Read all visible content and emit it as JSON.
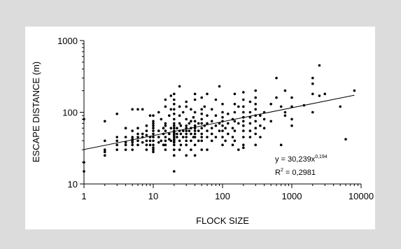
{
  "chart_data": {
    "type": "scatter",
    "xlabel": "FLOCK SIZE",
    "ylabel": "ESCAPE DISTANCE (m)",
    "xscale": "log",
    "yscale": "log",
    "xlim": [
      1,
      10000
    ],
    "ylim": [
      10,
      1000
    ],
    "x_ticks": [
      1,
      10,
      100,
      1000,
      10000
    ],
    "y_ticks": [
      10,
      100,
      1000
    ],
    "x_tick_labels": [
      "1",
      "10",
      "100",
      "1000",
      "10000"
    ],
    "y_tick_labels": [
      "10",
      "100",
      "1000"
    ],
    "fit": {
      "a": 30.239,
      "b": 0.194,
      "equation_prefix": "y = 30,239x",
      "equation_exponent": "0,194",
      "r2_prefix": "R",
      "r2_exponent": "2",
      "r2_value": " = 0,2981"
    },
    "points": [
      [
        1,
        80
      ],
      [
        1,
        20
      ],
      [
        1,
        15
      ],
      [
        2,
        75
      ],
      [
        2,
        40
      ],
      [
        2,
        30
      ],
      [
        2,
        28
      ],
      [
        2,
        25
      ],
      [
        3,
        95
      ],
      [
        3,
        45
      ],
      [
        3,
        40
      ],
      [
        3,
        35
      ],
      [
        3,
        30
      ],
      [
        4,
        38
      ],
      [
        4,
        35
      ],
      [
        4,
        30
      ],
      [
        4,
        45
      ],
      [
        4,
        60
      ],
      [
        5,
        55
      ],
      [
        5,
        45
      ],
      [
        5,
        40
      ],
      [
        5,
        35
      ],
      [
        5,
        30
      ],
      [
        5,
        110
      ],
      [
        5,
        42
      ],
      [
        5,
        38
      ],
      [
        6,
        110
      ],
      [
        6,
        60
      ],
      [
        6,
        50
      ],
      [
        6,
        45
      ],
      [
        6,
        40
      ],
      [
        6,
        35
      ],
      [
        7,
        50
      ],
      [
        7,
        45
      ],
      [
        7,
        38
      ],
      [
        7,
        110
      ],
      [
        8,
        55
      ],
      [
        8,
        48
      ],
      [
        8,
        40
      ],
      [
        8,
        35
      ],
      [
        8,
        30
      ],
      [
        8,
        65
      ],
      [
        9,
        45
      ],
      [
        9,
        40
      ],
      [
        9,
        35
      ],
      [
        9,
        90
      ],
      [
        10,
        70
      ],
      [
        10,
        60
      ],
      [
        10,
        55
      ],
      [
        10,
        50
      ],
      [
        10,
        45
      ],
      [
        10,
        40
      ],
      [
        10,
        35
      ],
      [
        10,
        32
      ],
      [
        10,
        30
      ],
      [
        10,
        28
      ],
      [
        10,
        65
      ],
      [
        10,
        75
      ],
      [
        10,
        90
      ],
      [
        12,
        55
      ],
      [
        12,
        45
      ],
      [
        12,
        38
      ],
      [
        12,
        100
      ],
      [
        13,
        40
      ],
      [
        13,
        80
      ],
      [
        14,
        60
      ],
      [
        14,
        50
      ],
      [
        14,
        35
      ],
      [
        15,
        70
      ],
      [
        15,
        65
      ],
      [
        15,
        55
      ],
      [
        15,
        45
      ],
      [
        15,
        40
      ],
      [
        15,
        35
      ],
      [
        15,
        30
      ],
      [
        15,
        150
      ],
      [
        15,
        120
      ],
      [
        17,
        50
      ],
      [
        17,
        42
      ],
      [
        17,
        90
      ],
      [
        18,
        60
      ],
      [
        18,
        40
      ],
      [
        18,
        110
      ],
      [
        18,
        170
      ],
      [
        20,
        180
      ],
      [
        20,
        150
      ],
      [
        20,
        130
      ],
      [
        20,
        110
      ],
      [
        20,
        95
      ],
      [
        20,
        80
      ],
      [
        20,
        70
      ],
      [
        20,
        65
      ],
      [
        20,
        60
      ],
      [
        20,
        55
      ],
      [
        20,
        52
      ],
      [
        20,
        50
      ],
      [
        20,
        48
      ],
      [
        20,
        45
      ],
      [
        20,
        42
      ],
      [
        20,
        40
      ],
      [
        20,
        38
      ],
      [
        20,
        35
      ],
      [
        20,
        30
      ],
      [
        20,
        15
      ],
      [
        20,
        25
      ],
      [
        22,
        50
      ],
      [
        22,
        45
      ],
      [
        22,
        60
      ],
      [
        24,
        230
      ],
      [
        24,
        120
      ],
      [
        24,
        90
      ],
      [
        24,
        70
      ],
      [
        24,
        55
      ],
      [
        24,
        40
      ],
      [
        24,
        30
      ],
      [
        25,
        65
      ],
      [
        25,
        50
      ],
      [
        25,
        35
      ],
      [
        27,
        55
      ],
      [
        27,
        45
      ],
      [
        27,
        100
      ],
      [
        30,
        120
      ],
      [
        30,
        80
      ],
      [
        30,
        65
      ],
      [
        30,
        60
      ],
      [
        30,
        55
      ],
      [
        30,
        50
      ],
      [
        30,
        45
      ],
      [
        30,
        40
      ],
      [
        30,
        35
      ],
      [
        30,
        25
      ],
      [
        30,
        140
      ],
      [
        33,
        55
      ],
      [
        33,
        70
      ],
      [
        35,
        110
      ],
      [
        35,
        75
      ],
      [
        35,
        60
      ],
      [
        35,
        50
      ],
      [
        35,
        40
      ],
      [
        35,
        30
      ],
      [
        38,
        45
      ],
      [
        38,
        85
      ],
      [
        40,
        180
      ],
      [
        40,
        150
      ],
      [
        40,
        100
      ],
      [
        40,
        75
      ],
      [
        40,
        65
      ],
      [
        40,
        60
      ],
      [
        40,
        55
      ],
      [
        40,
        50
      ],
      [
        40,
        45
      ],
      [
        40,
        35
      ],
      [
        40,
        25
      ],
      [
        45,
        70
      ],
      [
        45,
        55
      ],
      [
        45,
        40
      ],
      [
        50,
        160
      ],
      [
        50,
        110
      ],
      [
        50,
        80
      ],
      [
        50,
        70
      ],
      [
        50,
        60
      ],
      [
        50,
        50
      ],
      [
        50,
        45
      ],
      [
        50,
        40
      ],
      [
        50,
        30
      ],
      [
        50,
        95
      ],
      [
        55,
        65
      ],
      [
        55,
        120
      ],
      [
        60,
        180
      ],
      [
        60,
        90
      ],
      [
        60,
        70
      ],
      [
        60,
        55
      ],
      [
        60,
        45
      ],
      [
        60,
        30
      ],
      [
        70,
        110
      ],
      [
        70,
        75
      ],
      [
        70,
        60
      ],
      [
        70,
        50
      ],
      [
        70,
        40
      ],
      [
        80,
        90
      ],
      [
        80,
        65
      ],
      [
        80,
        45
      ],
      [
        80,
        150
      ],
      [
        90,
        70
      ],
      [
        90,
        55
      ],
      [
        90,
        230
      ],
      [
        100,
        130
      ],
      [
        100,
        100
      ],
      [
        100,
        85
      ],
      [
        100,
        75
      ],
      [
        100,
        65
      ],
      [
        100,
        55
      ],
      [
        100,
        45
      ],
      [
        100,
        35
      ],
      [
        110,
        60
      ],
      [
        110,
        40
      ],
      [
        120,
        95
      ],
      [
        120,
        70
      ],
      [
        120,
        50
      ],
      [
        140,
        80
      ],
      [
        140,
        60
      ],
      [
        140,
        45
      ],
      [
        140,
        35
      ],
      [
        150,
        180
      ],
      [
        150,
        130
      ],
      [
        150,
        100
      ],
      [
        150,
        75
      ],
      [
        150,
        55
      ],
      [
        150,
        40
      ],
      [
        170,
        70
      ],
      [
        170,
        30
      ],
      [
        170,
        120
      ],
      [
        200,
        190
      ],
      [
        200,
        150
      ],
      [
        200,
        120
      ],
      [
        200,
        100
      ],
      [
        200,
        85
      ],
      [
        200,
        75
      ],
      [
        200,
        65
      ],
      [
        200,
        55
      ],
      [
        200,
        45
      ],
      [
        200,
        35
      ],
      [
        200,
        32
      ],
      [
        250,
        140
      ],
      [
        250,
        100
      ],
      [
        250,
        85
      ],
      [
        250,
        70
      ],
      [
        250,
        55
      ],
      [
        250,
        45
      ],
      [
        300,
        200
      ],
      [
        300,
        160
      ],
      [
        300,
        130
      ],
      [
        300,
        110
      ],
      [
        300,
        90
      ],
      [
        300,
        75
      ],
      [
        300,
        60
      ],
      [
        300,
        50
      ],
      [
        300,
        35
      ],
      [
        350,
        90
      ],
      [
        350,
        65
      ],
      [
        350,
        45
      ],
      [
        400,
        100
      ],
      [
        400,
        80
      ],
      [
        400,
        60
      ],
      [
        500,
        130
      ],
      [
        500,
        75
      ],
      [
        600,
        300
      ],
      [
        600,
        160
      ],
      [
        700,
        35
      ],
      [
        700,
        120
      ],
      [
        800,
        200
      ],
      [
        800,
        100
      ],
      [
        800,
        90
      ],
      [
        1000,
        160
      ],
      [
        1000,
        120
      ],
      [
        1000,
        80
      ],
      [
        1000,
        65
      ],
      [
        1500,
        125
      ],
      [
        2000,
        300
      ],
      [
        2000,
        250
      ],
      [
        2000,
        180
      ],
      [
        2000,
        100
      ],
      [
        2500,
        450
      ],
      [
        2500,
        170
      ],
      [
        3000,
        180
      ],
      [
        5000,
        120
      ],
      [
        6000,
        42
      ],
      [
        8000,
        200
      ]
    ]
  }
}
